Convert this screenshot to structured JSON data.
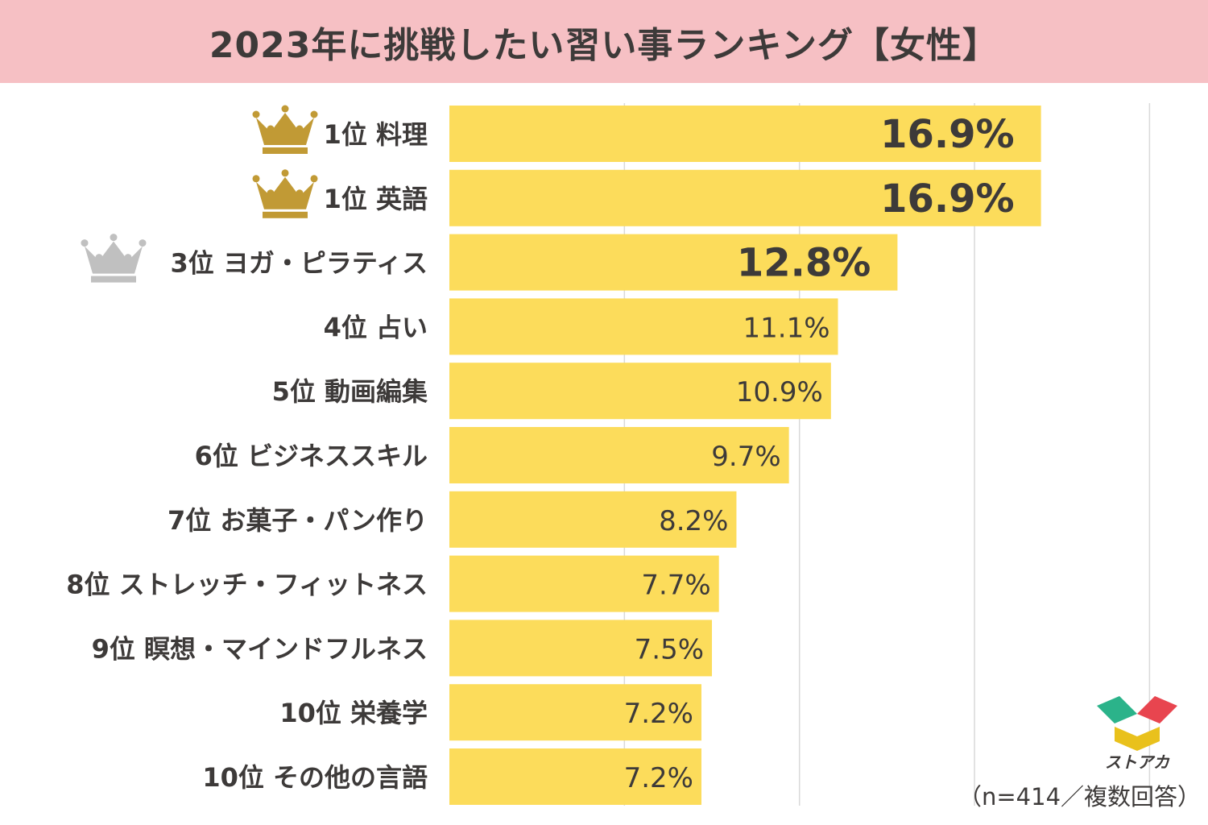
{
  "title": "2023年に挑戦したい習い事ランキング【女性】",
  "chart_data": {
    "type": "bar",
    "orientation": "horizontal",
    "title": "2023年に挑戦したい習い事ランキング【女性】",
    "xlim": [
      0,
      20
    ],
    "grid": true,
    "categories": [
      "1位 料理",
      "1位 英語",
      "3位 ヨガ・ピラティス",
      "4位 占い",
      "5位 動画編集",
      "6位 ビジネススキル",
      "7位 お菓子・パン作り",
      "8位 ストレッチ・フィットネス",
      "9位 瞑想・マインドフルネス",
      "10位 栄養学",
      "10位 その他の言語"
    ],
    "values": [
      16.9,
      16.9,
      12.8,
      11.1,
      10.9,
      9.7,
      8.2,
      7.7,
      7.5,
      7.2,
      7.2
    ],
    "value_labels": [
      "16.9%",
      "16.9%",
      "12.8%",
      "11.1%",
      "10.9%",
      "9.7%",
      "8.2%",
      "7.7%",
      "7.5%",
      "7.2%",
      "7.2%"
    ],
    "crowns": [
      "gold",
      "gold",
      "silver",
      "",
      "",
      "",
      "",
      "",
      "",
      "",
      ""
    ]
  },
  "colors": {
    "bar": "#fcdc5b",
    "title_bg": "#f6c0c4",
    "grid": "#d9d9d9",
    "gold": "#c19a35",
    "silver": "#c0c0c0",
    "text": "#3d3a39"
  },
  "logo_text": "ストアカ",
  "sample_note": "（n=414／複数回答）"
}
